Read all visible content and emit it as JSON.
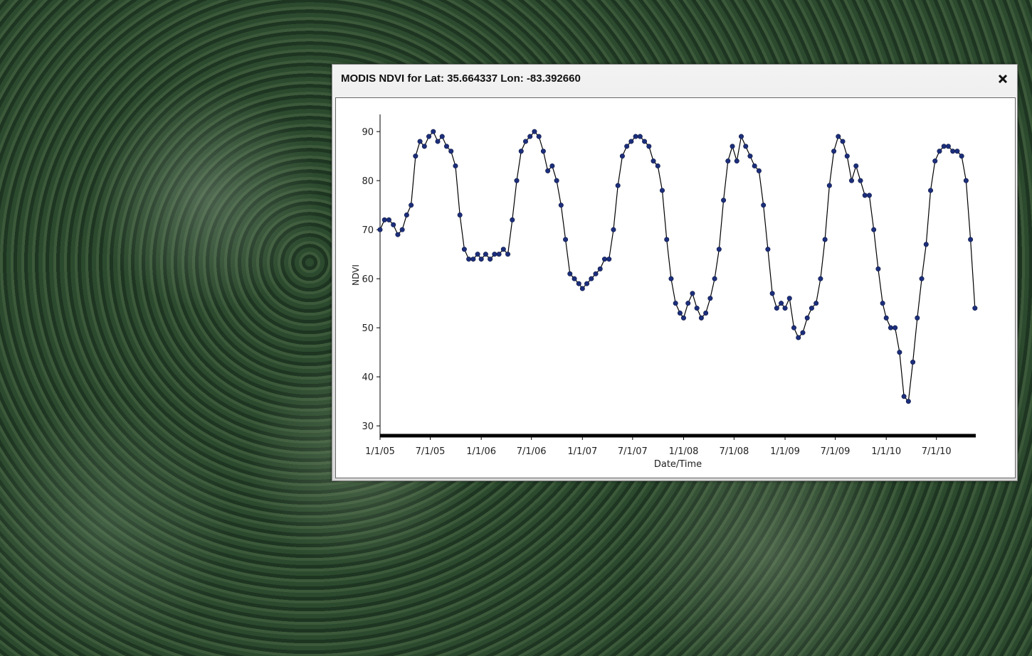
{
  "window": {
    "title": "MODIS NDVI for Lat: 35.664337 Lon: -83.392660"
  },
  "chart_data": {
    "type": "line",
    "x_label": "Date/Time",
    "y_label": "NDVI",
    "color": "#1c2f7c",
    "line_color": "#000000",
    "x": [
      "2005-01-01",
      "2005-01-17",
      "2005-02-02",
      "2005-02-18",
      "2005-03-06",
      "2005-03-22",
      "2005-04-07",
      "2005-04-23",
      "2005-05-09",
      "2005-05-25",
      "2005-06-10",
      "2005-06-26",
      "2005-07-12",
      "2005-07-28",
      "2005-08-13",
      "2005-08-29",
      "2005-09-14",
      "2005-09-30",
      "2005-10-16",
      "2005-11-01",
      "2005-11-17",
      "2005-12-03",
      "2005-12-19",
      "2006-01-01",
      "2006-01-17",
      "2006-02-02",
      "2006-02-18",
      "2006-03-06",
      "2006-03-22",
      "2006-04-07",
      "2006-04-23",
      "2006-05-09",
      "2006-05-25",
      "2006-06-10",
      "2006-06-26",
      "2006-07-12",
      "2006-07-28",
      "2006-08-13",
      "2006-08-29",
      "2006-09-14",
      "2006-09-30",
      "2006-10-16",
      "2006-11-01",
      "2006-11-17",
      "2006-12-03",
      "2006-12-19",
      "2007-01-01",
      "2007-01-17",
      "2007-02-02",
      "2007-02-18",
      "2007-03-06",
      "2007-03-22",
      "2007-04-07",
      "2007-04-23",
      "2007-05-09",
      "2007-05-25",
      "2007-06-10",
      "2007-06-26",
      "2007-07-12",
      "2007-07-28",
      "2007-08-13",
      "2007-08-29",
      "2007-09-14",
      "2007-09-30",
      "2007-10-16",
      "2007-11-01",
      "2007-11-17",
      "2007-12-03",
      "2007-12-19",
      "2008-01-01",
      "2008-01-17",
      "2008-02-02",
      "2008-02-18",
      "2008-03-05",
      "2008-03-21",
      "2008-04-06",
      "2008-04-22",
      "2008-05-08",
      "2008-05-24",
      "2008-06-09",
      "2008-06-25",
      "2008-07-11",
      "2008-07-27",
      "2008-08-12",
      "2008-08-28",
      "2008-09-13",
      "2008-09-29",
      "2008-10-15",
      "2008-10-31",
      "2008-11-16",
      "2008-12-02",
      "2008-12-18",
      "2009-01-01",
      "2009-01-17",
      "2009-02-02",
      "2009-02-18",
      "2009-03-06",
      "2009-03-22",
      "2009-04-07",
      "2009-04-23",
      "2009-05-09",
      "2009-05-25",
      "2009-06-10",
      "2009-06-26",
      "2009-07-12",
      "2009-07-28",
      "2009-08-13",
      "2009-08-29",
      "2009-09-14",
      "2009-09-30",
      "2009-10-16",
      "2009-11-01",
      "2009-11-17",
      "2009-12-03",
      "2009-12-19",
      "2010-01-01",
      "2010-01-17",
      "2010-02-02",
      "2010-02-18",
      "2010-03-06",
      "2010-03-22",
      "2010-04-07",
      "2010-04-23",
      "2010-05-09",
      "2010-05-25",
      "2010-06-10",
      "2010-06-26",
      "2010-07-12",
      "2010-07-28",
      "2010-08-13",
      "2010-08-29",
      "2010-09-14",
      "2010-09-30",
      "2010-10-16",
      "2010-11-01",
      "2010-11-17"
    ],
    "values": [
      70,
      72,
      72,
      71,
      69,
      70,
      73,
      75,
      85,
      88,
      87,
      89,
      90,
      88,
      89,
      87,
      86,
      83,
      73,
      66,
      64,
      64,
      65,
      64,
      65,
      64,
      65,
      65,
      66,
      65,
      72,
      80,
      86,
      88,
      89,
      90,
      89,
      86,
      82,
      83,
      80,
      75,
      68,
      61,
      60,
      59,
      58,
      59,
      60,
      61,
      62,
      64,
      64,
      70,
      79,
      85,
      87,
      88,
      89,
      89,
      88,
      87,
      84,
      83,
      78,
      68,
      60,
      55,
      53,
      52,
      55,
      57,
      54,
      52,
      53,
      56,
      60,
      66,
      76,
      84,
      87,
      84,
      89,
      87,
      85,
      83,
      82,
      75,
      66,
      57,
      54,
      55,
      54,
      56,
      50,
      48,
      49,
      52,
      54,
      55,
      60,
      68,
      79,
      86,
      89,
      88,
      85,
      80,
      83,
      80,
      77,
      77,
      70,
      62,
      55,
      52,
      50,
      50,
      45,
      36,
      35,
      43,
      52,
      60,
      67,
      78,
      84,
      86,
      87,
      87,
      86,
      86,
      85,
      80,
      68,
      54
    ],
    "xlim": [
      "2005-01-01",
      "2010-11-20"
    ],
    "xticks": [
      {
        "value": "2005-01-01",
        "label": "1/1/05"
      },
      {
        "value": "2005-07-01",
        "label": "7/1/05"
      },
      {
        "value": "2006-01-01",
        "label": "1/1/06"
      },
      {
        "value": "2006-07-01",
        "label": "7/1/06"
      },
      {
        "value": "2007-01-01",
        "label": "1/1/07"
      },
      {
        "value": "2007-07-01",
        "label": "7/1/07"
      },
      {
        "value": "2008-01-01",
        "label": "1/1/08"
      },
      {
        "value": "2008-07-01",
        "label": "7/1/08"
      },
      {
        "value": "2009-01-01",
        "label": "1/1/09"
      },
      {
        "value": "2009-07-01",
        "label": "7/1/09"
      },
      {
        "value": "2010-01-01",
        "label": "1/1/10"
      },
      {
        "value": "2010-07-01",
        "label": "7/1/10"
      }
    ],
    "ylim": [
      28,
      93.5
    ],
    "yticks": [
      30,
      40,
      50,
      60,
      70,
      80,
      90
    ]
  }
}
